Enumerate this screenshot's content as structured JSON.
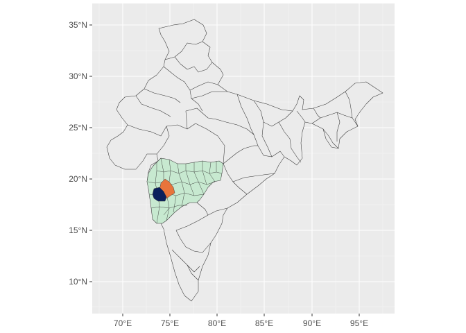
{
  "map": {
    "x_ticks": [
      "70°E",
      "75°E",
      "80°E",
      "85°E",
      "90°E",
      "95°E"
    ],
    "y_ticks": [
      "10°N",
      "15°N",
      "20°N",
      "25°N",
      "30°N",
      "35°N"
    ],
    "colors": {
      "panel_background": "#ebebeb",
      "country_fill": "#ebebeb",
      "border": "#333333",
      "state_highlight": "#c7e9d0",
      "district_orange": "#e8743b",
      "district_navy": "#0b1f5c"
    }
  }
}
